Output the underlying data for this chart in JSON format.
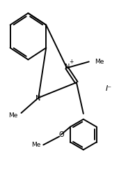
{
  "background": "#ffffff",
  "line_color": "#000000",
  "line_width": 1.4,
  "text_color": "#000000",
  "figsize": [
    1.94,
    2.75
  ],
  "dpi": 100,
  "N_plus_label": "N",
  "N_label": "N",
  "O_label": "O",
  "I_label": "I⁻",
  "Me_label": "Me",
  "OMe_label": "OMe"
}
